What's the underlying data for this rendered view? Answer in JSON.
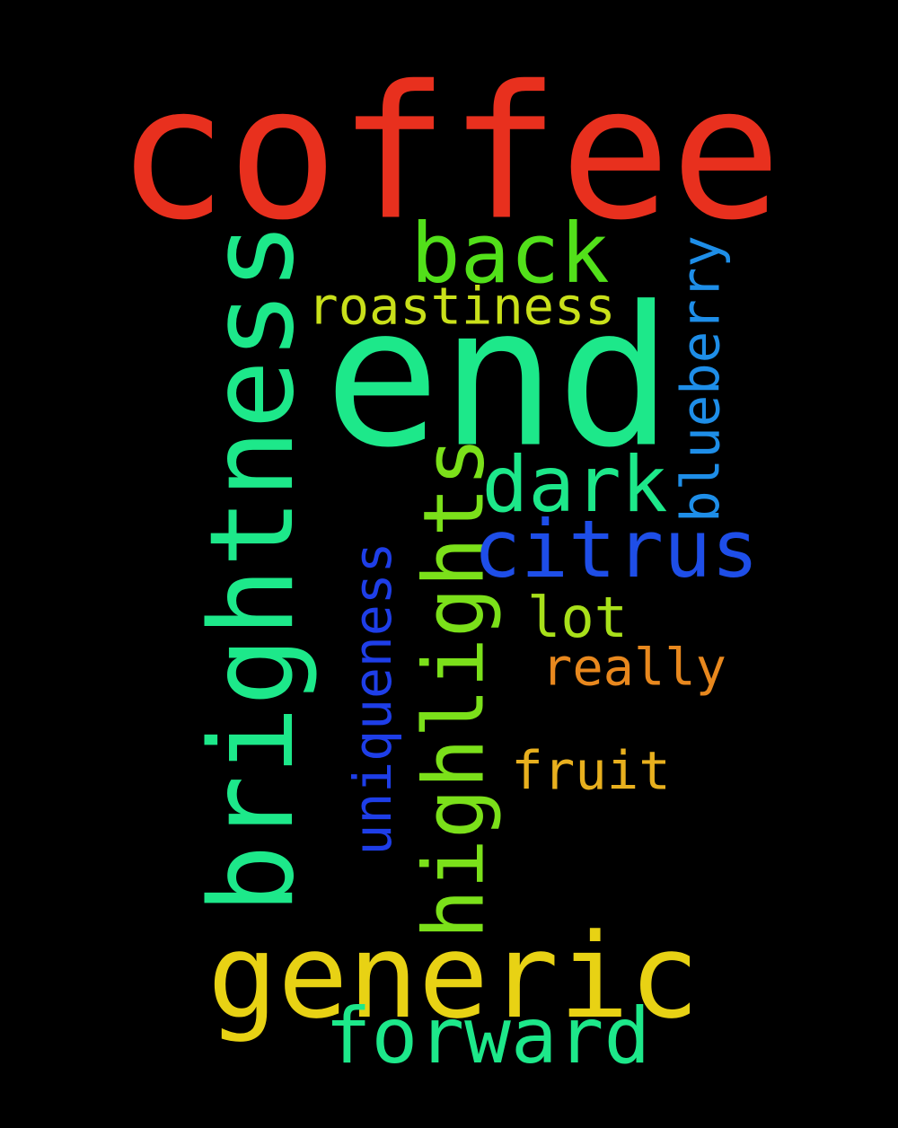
{
  "words": [
    {
      "text": "coffee",
      "color": "#e8301e"
    },
    {
      "text": "end",
      "color": "#1de88a"
    },
    {
      "text": "brightness",
      "color": "#1de88a"
    },
    {
      "text": "generic",
      "color": "#e8d214"
    },
    {
      "text": "highlights",
      "color": "#7be01a"
    },
    {
      "text": "back",
      "color": "#52e01a"
    },
    {
      "text": "citrus",
      "color": "#1e4ee8"
    },
    {
      "text": "dark",
      "color": "#1de88a"
    },
    {
      "text": "forward",
      "color": "#1de88a"
    },
    {
      "text": "roastiness",
      "color": "#c9e01a"
    },
    {
      "text": "blueberry",
      "color": "#1e8ee8"
    },
    {
      "text": "uniqueness",
      "color": "#1e3ee8"
    },
    {
      "text": "lot",
      "color": "#a8e01a"
    },
    {
      "text": "really",
      "color": "#e8881e"
    },
    {
      "text": "fruit",
      "color": "#e8b01e"
    }
  ]
}
